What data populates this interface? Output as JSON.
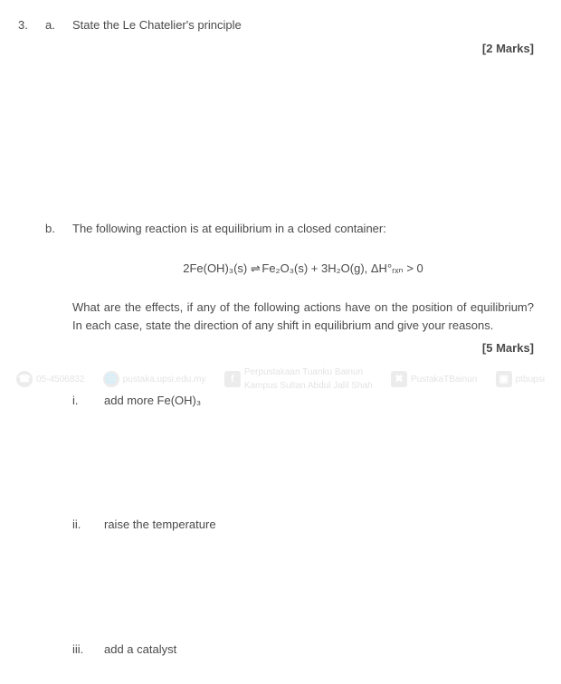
{
  "question": {
    "number": "3.",
    "part_a": {
      "label": "a.",
      "text": "State the Le Chatelier's principle",
      "marks": "[2 Marks]"
    },
    "part_b": {
      "label": "b.",
      "intro": "The following reaction is at equilibrium in a closed container:",
      "equation_lhs": "2Fe(OH)₃(s)",
      "equation_arrow": "⇌",
      "equation_rhs": "Fe₂O₃(s) + 3H₂O(g), ΔH°ᵣₓₙ > 0",
      "body": "What are the effects, if any of the following actions have on the position of equilibrium? In each case, state the direction of any shift in equilibrium and give your reasons.",
      "marks": "[5 Marks]",
      "items": {
        "i": {
          "num": "i.",
          "text": "add more Fe(OH)₃"
        },
        "ii": {
          "num": "ii.",
          "text": "raise the temperature"
        },
        "iii": {
          "num": "iii.",
          "text": "add a catalyst"
        }
      }
    }
  },
  "watermark": {
    "phone": "05-4506832",
    "web": "pustaka.upsi.edu.my",
    "fb1": "Perpustakaan Tuanku Bainun",
    "fb2": "Kampus Sultan Abdul Jalil Shah",
    "tw": "PustakaTBainun",
    "ig": "ptbupsi"
  }
}
